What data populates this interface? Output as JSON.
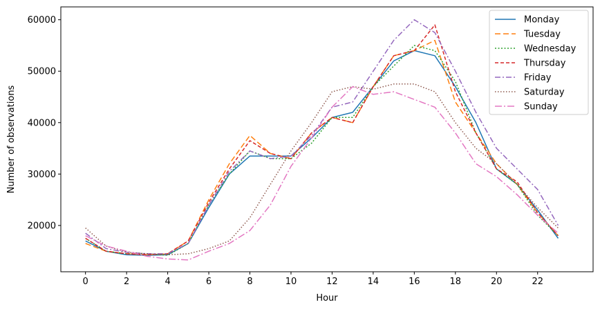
{
  "chart_data": {
    "type": "line",
    "xlabel": "Hour",
    "ylabel": "Number of observations",
    "xlim": [
      -1.2,
      24.7
    ],
    "ylim": [
      11000,
      62500
    ],
    "xticks": [
      0,
      2,
      4,
      6,
      8,
      10,
      12,
      14,
      16,
      18,
      20,
      22
    ],
    "yticks": [
      20000,
      30000,
      40000,
      50000,
      60000
    ],
    "grid": false,
    "legend_position": "top-right",
    "x": [
      0,
      1,
      2,
      3,
      4,
      5,
      6,
      7,
      8,
      9,
      10,
      11,
      12,
      13,
      14,
      15,
      16,
      17,
      18,
      19,
      20,
      21,
      22,
      23
    ],
    "series": [
      {
        "name": "Monday",
        "color": "#1f77b4",
        "dash": "",
        "values": [
          17000,
          15000,
          14300,
          14200,
          14300,
          16500,
          23500,
          30000,
          33500,
          33500,
          33500,
          37000,
          41000,
          42000,
          47000,
          52000,
          54000,
          53000,
          47000,
          40000,
          31000,
          28000,
          23000,
          17500
        ]
      },
      {
        "name": "Tuesday",
        "color": "#ff7f0e",
        "dash": "8,4",
        "values": [
          16500,
          15000,
          14500,
          14300,
          14500,
          17000,
          25000,
          32000,
          37500,
          34000,
          33000,
          38000,
          41000,
          40000,
          47000,
          53000,
          54000,
          56000,
          44000,
          38000,
          32000,
          28000,
          22500,
          18000
        ]
      },
      {
        "name": "Wednesday",
        "color": "#2ca02c",
        "dash": "2,2.5",
        "values": [
          17500,
          15000,
          14500,
          14500,
          14200,
          16500,
          24000,
          30000,
          34500,
          33000,
          33000,
          36000,
          41000,
          41000,
          47000,
          51000,
          55000,
          54000,
          48000,
          38000,
          31000,
          28000,
          22000,
          18000
        ]
      },
      {
        "name": "Thursday",
        "color": "#d62728",
        "dash": "5,3",
        "values": [
          17500,
          15000,
          14500,
          14300,
          14500,
          17000,
          24500,
          31000,
          36500,
          34000,
          33000,
          38000,
          41000,
          40000,
          47000,
          53000,
          54000,
          59000,
          46000,
          38000,
          31000,
          28500,
          22500,
          18000
        ]
      },
      {
        "name": "Friday",
        "color": "#9467bd",
        "dash": "8,3,2,3",
        "values": [
          18500,
          15500,
          14800,
          14500,
          14500,
          16500,
          24000,
          30500,
          34500,
          33000,
          33500,
          37500,
          43000,
          44000,
          50000,
          56000,
          60000,
          57500,
          50000,
          42000,
          35000,
          31000,
          27000,
          20000
        ]
      },
      {
        "name": "Saturday",
        "color": "#8c564b",
        "dash": "1.5,2.5",
        "values": [
          19500,
          16000,
          14800,
          14500,
          14300,
          14500,
          15500,
          17000,
          21500,
          28000,
          34500,
          40000,
          46000,
          47000,
          46500,
          47500,
          47500,
          46000,
          40000,
          35000,
          32000,
          28000,
          23500,
          19500
        ]
      },
      {
        "name": "Sunday",
        "color": "#e377c2",
        "dash": "10,3,2,3",
        "values": [
          18000,
          16000,
          15000,
          14000,
          13500,
          13300,
          15000,
          16500,
          19000,
          24000,
          31500,
          37000,
          43000,
          47000,
          45500,
          46000,
          44500,
          43000,
          38000,
          32000,
          29500,
          26000,
          22000,
          18500
        ]
      }
    ]
  }
}
